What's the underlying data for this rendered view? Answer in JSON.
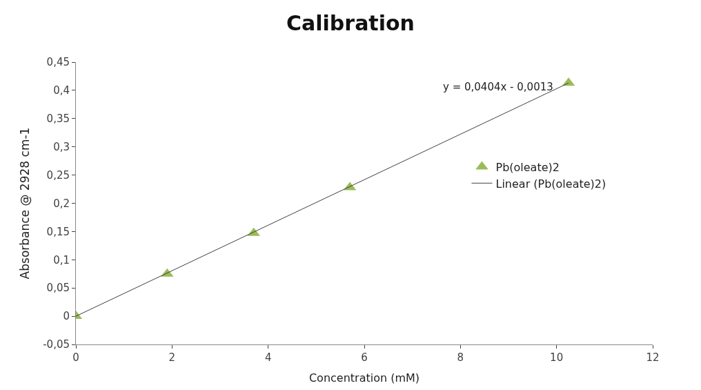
{
  "chart_data": {
    "type": "scatter",
    "title": "Calibration",
    "xlabel": "Concentration (mM)",
    "ylabel": "Absorbance @ 2928 cm-1",
    "series": [
      {
        "name": "Pb(oleate)2",
        "color": "#9bbb59",
        "marker": "triangle",
        "x": [
          0,
          1.9,
          3.7,
          5.7,
          10.25
        ],
        "values": [
          0,
          0.075,
          0.147,
          0.228,
          0.413
        ]
      },
      {
        "name": "Linear (Pb(oleate)2)",
        "type": "line",
        "color": "#404040",
        "marker": "none",
        "line_style": "solid",
        "x": [
          0,
          10.25
        ],
        "values": [
          0,
          0.413
        ]
      }
    ],
    "annotations": [
      "y = 0,0404x - 0,0013"
    ],
    "xlim": [
      0,
      12
    ],
    "xticks": [
      0,
      2,
      4,
      6,
      8,
      10,
      12
    ],
    "ylim": [
      -0.05,
      0.45
    ],
    "yticks": [
      {
        "value": -0.05,
        "label": "-0,05"
      },
      0,
      {
        "value": 0.05,
        "label": "0,05"
      },
      {
        "value": 0.1,
        "label": "0,1"
      },
      {
        "value": 0.15,
        "label": "0,15"
      },
      {
        "value": 0.2,
        "label": "0,2"
      },
      {
        "value": 0.25,
        "label": "0,25"
      },
      {
        "value": 0.3,
        "label": "0,3"
      },
      {
        "value": 0.35,
        "label": "0,35"
      },
      {
        "value": 0.4,
        "label": "0,4"
      },
      {
        "value": 0.45,
        "label": "0,45"
      }
    ],
    "legend": "right"
  }
}
